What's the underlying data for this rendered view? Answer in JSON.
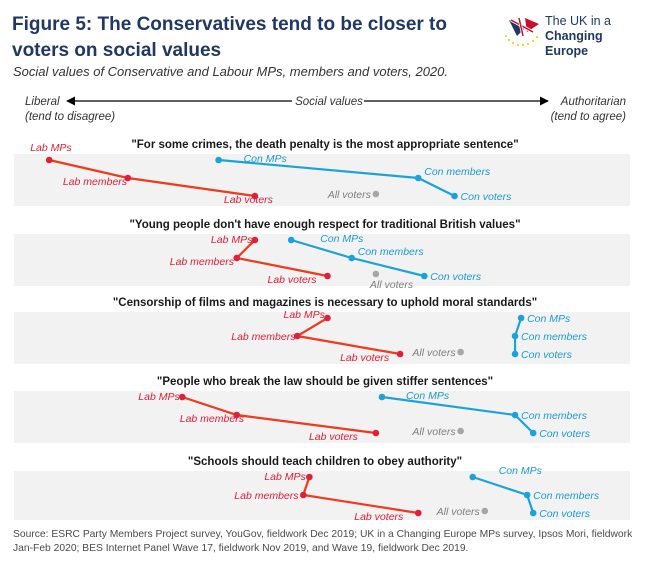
{
  "header": {
    "title": "Figure 5: The Conservatives tend to be closer to voters on social values",
    "subtitle": "Social values of Conservative and Labour MPs, members and voters, 2020.",
    "logo": {
      "line1": "The UK in a",
      "line2": "Changing Europe"
    }
  },
  "axis": {
    "left_label": "Liberal",
    "left_sub": "(tend to disagree)",
    "center_label": "Social values",
    "right_label": "Authoritarian",
    "right_sub": "(tend to agree)"
  },
  "colors": {
    "lab": "#f0391d",
    "lab_point": "#e0203a",
    "con": "#1ba3d9",
    "voters": "#a6a6a6",
    "band": "#f2f2f2"
  },
  "chart_data": {
    "type": "scatter",
    "x_axis": "Social values, from Liberal (tend to disagree) to Authoritarian (tend to agree); no numeric scale shown",
    "panels": [
      {
        "statement": "\"For some crimes, the death penalty is the most appropriate sentence\"",
        "points": {
          "Lab MPs": 0.04,
          "Lab members": 0.17,
          "Lab voters": 0.38,
          "All voters": 0.58,
          "Con MPs": 0.32,
          "Con members": 0.65,
          "Con voters": 0.71
        }
      },
      {
        "statement": "\"Young people don't have enough respect for traditional British values\"",
        "points": {
          "Lab MPs": 0.38,
          "Lab members": 0.35,
          "Lab voters": 0.5,
          "All voters": 0.58,
          "Con MPs": 0.44,
          "Con members": 0.54,
          "Con voters": 0.66
        }
      },
      {
        "statement": "\"Censorship of films and magazines is necessary to uphold moral standards\"",
        "points": {
          "Lab MPs": 0.5,
          "Lab members": 0.45,
          "Lab voters": 0.62,
          "All voters": 0.72,
          "Con MPs": 0.82,
          "Con members": 0.81,
          "Con voters": 0.81
        }
      },
      {
        "statement": "\"People who break the law should be given stiffer sentences\"",
        "points": {
          "Lab MPs": 0.26,
          "Lab members": 0.35,
          "Lab voters": 0.58,
          "All voters": 0.72,
          "Con MPs": 0.59,
          "Con members": 0.81,
          "Con voters": 0.84
        }
      },
      {
        "statement": "\"Schools should teach children to obey authority\"",
        "points": {
          "Lab MPs": 0.47,
          "Lab members": 0.46,
          "Lab voters": 0.65,
          "All voters": 0.76,
          "Con MPs": 0.74,
          "Con members": 0.83,
          "Con voters": 0.84
        }
      }
    ]
  },
  "source": "Source: ESRC Party Members Project survey, YouGov, fieldwork Dec 2019; UK in a Changing Europe MPs survey, Ipsos Mori, fieldwork Jan-Feb 2020; BES Internet Panel Wave 17, fieldwork Nov 2019, and Wave 19, fieldwork Dec 2019."
}
